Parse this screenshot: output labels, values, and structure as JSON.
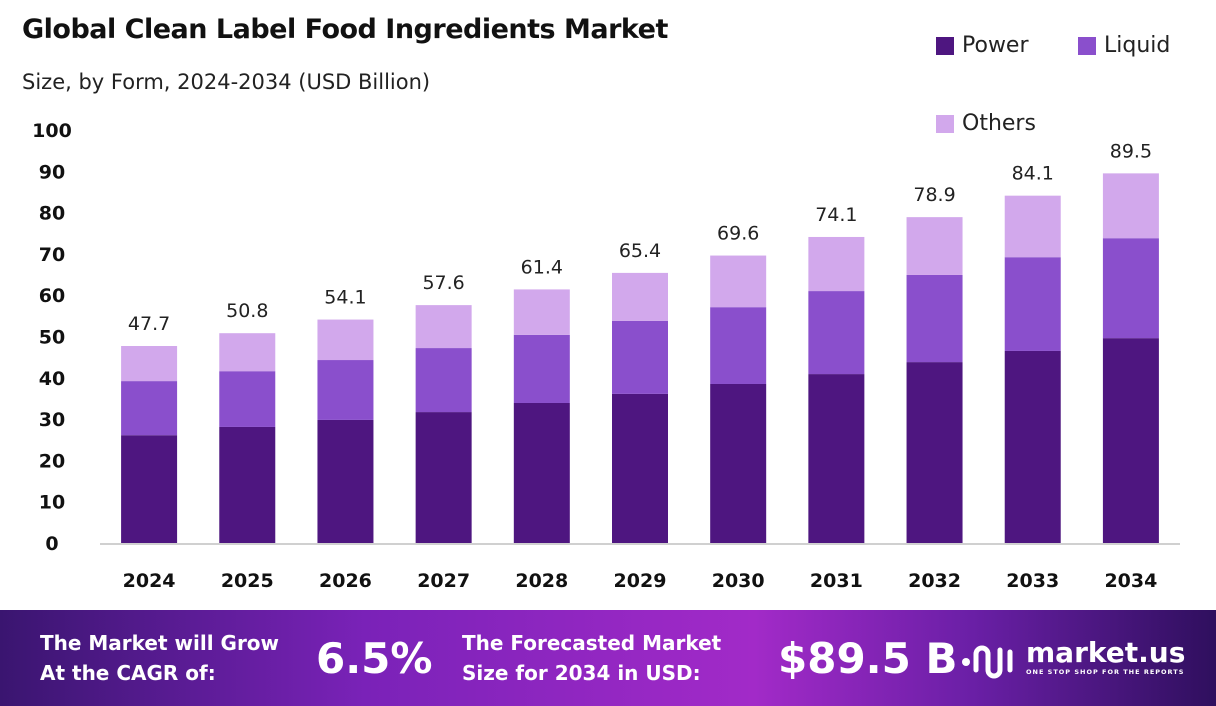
{
  "chart_data": {
    "type": "bar",
    "stacked": true,
    "title": "Global Clean Label Food Ingredients Market",
    "subtitle": "Size, by Form, 2024-2034 (USD Billion)",
    "categories": [
      "2024",
      "2025",
      "2026",
      "2027",
      "2028",
      "2029",
      "2030",
      "2031",
      "2032",
      "2033",
      "2034"
    ],
    "series": [
      {
        "name": "Power",
        "color": "#4e1680",
        "values": [
          26.1,
          28.1,
          29.8,
          31.7,
          33.9,
          36.1,
          38.5,
          40.9,
          43.8,
          46.5,
          49.6
        ]
      },
      {
        "name": "Liquid",
        "color": "#8a4fcc",
        "values": [
          13.1,
          13.5,
          14.5,
          15.5,
          16.5,
          17.7,
          18.6,
          20.1,
          21.1,
          22.7,
          24.2
        ]
      },
      {
        "name": "Others",
        "color": "#d2a8ec",
        "values": [
          8.5,
          9.2,
          9.8,
          10.4,
          11.0,
          11.6,
          12.5,
          13.1,
          14.0,
          14.9,
          15.7
        ]
      }
    ],
    "totals": [
      "47.7",
      "50.8",
      "54.1",
      "57.6",
      "61.4",
      "65.4",
      "69.6",
      "74.1",
      "78.9",
      "84.1",
      "89.5"
    ],
    "yticks": [
      "0",
      "10",
      "20",
      "30",
      "40",
      "50",
      "60",
      "70",
      "80",
      "90",
      "100"
    ],
    "ylim": [
      0,
      100
    ],
    "grid": false,
    "legend_placement": "top-right"
  },
  "footer": {
    "cagr_label_1": "The Market will Grow",
    "cagr_label_2": "At the CAGR of:",
    "cagr_value": "6.5%",
    "forecast_label_1": "The Forecasted Market",
    "forecast_label_2": "Size for 2034 in USD:",
    "forecast_value": "$89.5 B",
    "brand_name": "market.us",
    "brand_tagline": "ONE STOP SHOP FOR THE REPORTS"
  }
}
